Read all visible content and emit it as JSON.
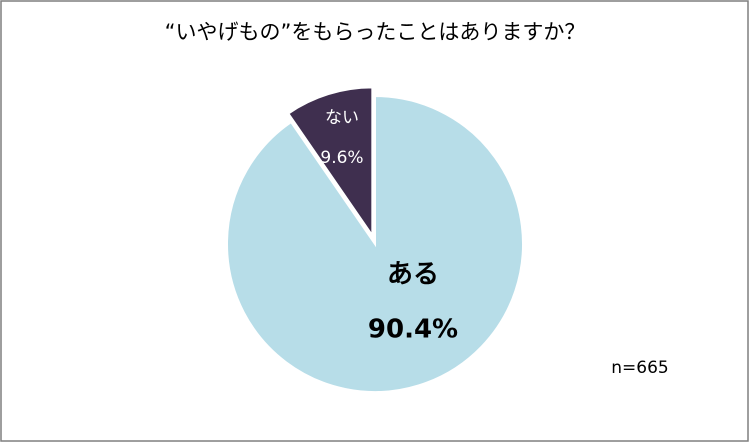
{
  "chart_data": {
    "type": "pie",
    "title": "“いやげもの”をもらったことはありますか？",
    "categories": [
      "ある",
      "ない"
    ],
    "values": [
      90.4,
      9.6
    ],
    "value_labels": [
      "90.4%",
      "9.6%"
    ],
    "colors": [
      "#b7dde8",
      "#3f2f4f"
    ],
    "explode": [
      false,
      true
    ],
    "annotation": "n=665"
  }
}
